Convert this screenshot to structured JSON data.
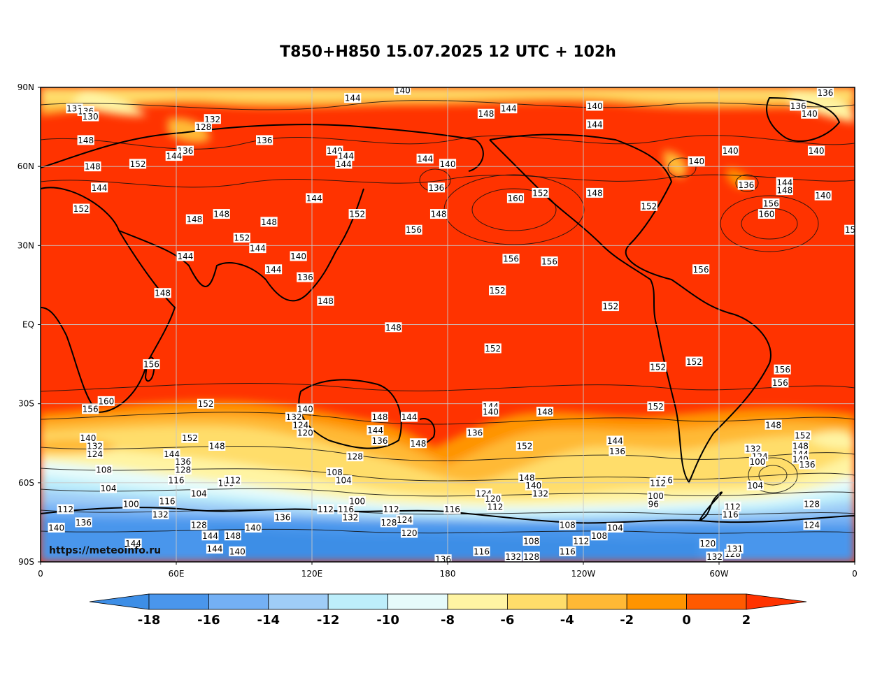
{
  "title": "T850+H850 15.07.2025 12 UTC + 102h",
  "watermark": "https://meteoinfo.ru",
  "lat_ticks": [
    "90N",
    "60N",
    "30N",
    "EQ",
    "30S",
    "60S",
    "90S"
  ],
  "lon_ticks": [
    "0",
    "60E",
    "120E",
    "180",
    "120W",
    "60W",
    "0"
  ],
  "colorbar": {
    "labels": [
      "-18",
      "-16",
      "-14",
      "-12",
      "-10",
      "-8",
      "-6",
      "-4",
      "-2",
      "0",
      "2"
    ],
    "colors": [
      "#3d8ee6",
      "#4a96ec",
      "#74b0f4",
      "#9fcdf7",
      "#bdeefb",
      "#e6fbfb",
      "#fff4a3",
      "#ffdd6a",
      "#ffb935",
      "#ff9400",
      "#ff5a00",
      "#ff3300"
    ]
  },
  "field_colors": {
    "warm": "#ff3300",
    "warm2": "#ff5a00",
    "orange": "#ff9400",
    "amber": "#ffb935",
    "yellow": "#ffdd6a",
    "paleyellow": "#fff4a3",
    "ice": "#e6fbfb",
    "cyan": "#bdeefb",
    "lightblue": "#9fcdf7",
    "blue": "#74b0f4",
    "midblue": "#4a96ec",
    "deepblue": "#3d8ee6"
  },
  "contour_labels": [
    {
      "v": "140",
      "lon": 160,
      "lat": 89
    },
    {
      "v": "144",
      "lon": 138,
      "lat": 86
    },
    {
      "v": "136",
      "lon": 347,
      "lat": 88
    },
    {
      "v": "132",
      "lon": 15,
      "lat": 82
    },
    {
      "v": "136",
      "lon": 20,
      "lat": 81
    },
    {
      "v": "130",
      "lon": 22,
      "lat": 79
    },
    {
      "v": "132",
      "lon": 76,
      "lat": 78
    },
    {
      "v": "128",
      "lon": 72,
      "lat": 75
    },
    {
      "v": "148",
      "lon": 197,
      "lat": 80
    },
    {
      "v": "144",
      "lon": 207,
      "lat": 82
    },
    {
      "v": "140",
      "lon": 245,
      "lat": 83
    },
    {
      "v": "144",
      "lon": 245,
      "lat": 76
    },
    {
      "v": "136",
      "lon": 335,
      "lat": 83
    },
    {
      "v": "140",
      "lon": 340,
      "lat": 80
    },
    {
      "v": "148",
      "lon": 20,
      "lat": 70
    },
    {
      "v": "136",
      "lon": 64,
      "lat": 66
    },
    {
      "v": "136",
      "lon": 99,
      "lat": 70
    },
    {
      "v": "140",
      "lon": 130,
      "lat": 66
    },
    {
      "v": "144",
      "lon": 135,
      "lat": 64
    },
    {
      "v": "144",
      "lon": 134,
      "lat": 61
    },
    {
      "v": "144",
      "lon": 59,
      "lat": 64
    },
    {
      "v": "144",
      "lon": 170,
      "lat": 63
    },
    {
      "v": "140",
      "lon": 180,
      "lat": 61
    },
    {
      "v": "140",
      "lon": 290,
      "lat": 62
    },
    {
      "v": "140",
      "lon": 305,
      "lat": 66
    },
    {
      "v": "140",
      "lon": 343,
      "lat": 66
    },
    {
      "v": "148",
      "lon": 23,
      "lat": 60
    },
    {
      "v": "152",
      "lon": 43,
      "lat": 61
    },
    {
      "v": "144",
      "lon": 26,
      "lat": 52
    },
    {
      "v": "136",
      "lon": 175,
      "lat": 52
    },
    {
      "v": "136",
      "lon": 312,
      "lat": 53
    },
    {
      "v": "144",
      "lon": 329,
      "lat": 54
    },
    {
      "v": "148",
      "lon": 329,
      "lat": 51
    },
    {
      "v": "140",
      "lon": 346,
      "lat": 49
    },
    {
      "v": "152",
      "lon": 221,
      "lat": 50
    },
    {
      "v": "160",
      "lon": 210,
      "lat": 48
    },
    {
      "v": "148",
      "lon": 245,
      "lat": 50
    },
    {
      "v": "152",
      "lon": 269,
      "lat": 45
    },
    {
      "v": "156",
      "lon": 323,
      "lat": 46
    },
    {
      "v": "160",
      "lon": 321,
      "lat": 42
    },
    {
      "v": "15",
      "lon": 358,
      "lat": 36
    },
    {
      "v": "152",
      "lon": 18,
      "lat": 44
    },
    {
      "v": "148",
      "lon": 68,
      "lat": 40
    },
    {
      "v": "148",
      "lon": 80,
      "lat": 42
    },
    {
      "v": "148",
      "lon": 101,
      "lat": 39
    },
    {
      "v": "144",
      "lon": 121,
      "lat": 48
    },
    {
      "v": "152",
      "lon": 140,
      "lat": 42
    },
    {
      "v": "148",
      "lon": 176,
      "lat": 42
    },
    {
      "v": "156",
      "lon": 165,
      "lat": 36
    },
    {
      "v": "152",
      "lon": 89,
      "lat": 33
    },
    {
      "v": "144",
      "lon": 96,
      "lat": 29
    },
    {
      "v": "140",
      "lon": 114,
      "lat": 26
    },
    {
      "v": "144",
      "lon": 64,
      "lat": 26
    },
    {
      "v": "144",
      "lon": 103,
      "lat": 21
    },
    {
      "v": "136",
      "lon": 117,
      "lat": 18
    },
    {
      "v": "156",
      "lon": 208,
      "lat": 25
    },
    {
      "v": "156",
      "lon": 225,
      "lat": 24
    },
    {
      "v": "156",
      "lon": 292,
      "lat": 21
    },
    {
      "v": "152",
      "lon": 202,
      "lat": 13
    },
    {
      "v": "152",
      "lon": 252,
      "lat": 7
    },
    {
      "v": "148",
      "lon": 54,
      "lat": 12
    },
    {
      "v": "148",
      "lon": 126,
      "lat": 9
    },
    {
      "v": "148",
      "lon": 156,
      "lat": -1
    },
    {
      "v": "152",
      "lon": 200,
      "lat": -9
    },
    {
      "v": "156",
      "lon": 49,
      "lat": -15
    },
    {
      "v": "152",
      "lon": 273,
      "lat": -16
    },
    {
      "v": "152",
      "lon": 289,
      "lat": -14
    },
    {
      "v": "156",
      "lon": 328,
      "lat": -17
    },
    {
      "v": "156",
      "lon": 327,
      "lat": -22
    },
    {
      "v": "160",
      "lon": 29,
      "lat": -29
    },
    {
      "v": "156",
      "lon": 22,
      "lat": -32
    },
    {
      "v": "152",
      "lon": 73,
      "lat": -30
    },
    {
      "v": "152",
      "lon": 272,
      "lat": -31
    },
    {
      "v": "140",
      "lon": 117,
      "lat": -32
    },
    {
      "v": "132",
      "lon": 112,
      "lat": -35
    },
    {
      "v": "124",
      "lon": 115,
      "lat": -38
    },
    {
      "v": "120",
      "lon": 117,
      "lat": -41
    },
    {
      "v": "144",
      "lon": 199,
      "lat": -31
    },
    {
      "v": "140",
      "lon": 199,
      "lat": -33
    },
    {
      "v": "148",
      "lon": 223,
      "lat": -33
    },
    {
      "v": "148",
      "lon": 150,
      "lat": -35
    },
    {
      "v": "144",
      "lon": 163,
      "lat": -35
    },
    {
      "v": "144",
      "lon": 148,
      "lat": -40
    },
    {
      "v": "136",
      "lon": 150,
      "lat": -44
    },
    {
      "v": "148",
      "lon": 167,
      "lat": -45
    },
    {
      "v": "136",
      "lon": 192,
      "lat": -41
    },
    {
      "v": "148",
      "lon": 324,
      "lat": -38
    },
    {
      "v": "152",
      "lon": 337,
      "lat": -42
    },
    {
      "v": "148",
      "lon": 336,
      "lat": -46
    },
    {
      "v": "144",
      "lon": 336,
      "lat": -49
    },
    {
      "v": "140",
      "lon": 336,
      "lat": -51
    },
    {
      "v": "136",
      "lon": 339,
      "lat": -53
    },
    {
      "v": "132",
      "lon": 315,
      "lat": -47
    },
    {
      "v": "124",
      "lon": 318,
      "lat": -50
    },
    {
      "v": "100",
      "lon": 317,
      "lat": -52
    },
    {
      "v": "104",
      "lon": 316,
      "lat": -61
    },
    {
      "v": "140",
      "lon": 21,
      "lat": -43
    },
    {
      "v": "132",
      "lon": 24,
      "lat": -46
    },
    {
      "v": "124",
      "lon": 24,
      "lat": -49
    },
    {
      "v": "108",
      "lon": 28,
      "lat": -55
    },
    {
      "v": "152",
      "lon": 66,
      "lat": -43
    },
    {
      "v": "148",
      "lon": 78,
      "lat": -46
    },
    {
      "v": "144",
      "lon": 58,
      "lat": -49
    },
    {
      "v": "136",
      "lon": 63,
      "lat": -52
    },
    {
      "v": "128",
      "lon": 63,
      "lat": -55
    },
    {
      "v": "116",
      "lon": 60,
      "lat": -59
    },
    {
      "v": "100",
      "lon": 82,
      "lat": -60
    },
    {
      "v": "112",
      "lon": 85,
      "lat": -59
    },
    {
      "v": "104",
      "lon": 30,
      "lat": -62
    },
    {
      "v": "100",
      "lon": 40,
      "lat": -68
    },
    {
      "v": "104",
      "lon": 70,
      "lat": -64
    },
    {
      "v": "116",
      "lon": 56,
      "lat": -67
    },
    {
      "v": "112",
      "lon": 11,
      "lat": -70
    },
    {
      "v": "132",
      "lon": 53,
      "lat": -72
    },
    {
      "v": "128",
      "lon": 70,
      "lat": -76
    },
    {
      "v": "140",
      "lon": 7,
      "lat": -77
    },
    {
      "v": "136",
      "lon": 19,
      "lat": -75
    },
    {
      "v": "144",
      "lon": 41,
      "lat": -83
    },
    {
      "v": "144",
      "lon": 75,
      "lat": -80
    },
    {
      "v": "144",
      "lon": 77,
      "lat": -85
    },
    {
      "v": "148",
      "lon": 85,
      "lat": -80
    },
    {
      "v": "140",
      "lon": 94,
      "lat": -77
    },
    {
      "v": "140",
      "lon": 87,
      "lat": -86
    },
    {
      "v": "136",
      "lon": 107,
      "lat": -73
    },
    {
      "v": "128",
      "lon": 139,
      "lat": -50
    },
    {
      "v": "108",
      "lon": 130,
      "lat": -56
    },
    {
      "v": "104",
      "lon": 134,
      "lat": -59
    },
    {
      "v": "100",
      "lon": 140,
      "lat": -67
    },
    {
      "v": "112",
      "lon": 126,
      "lat": -70
    },
    {
      "v": "116",
      "lon": 135,
      "lat": -70
    },
    {
      "v": "132",
      "lon": 137,
      "lat": -73
    },
    {
      "v": "112",
      "lon": 155,
      "lat": -70
    },
    {
      "v": "128",
      "lon": 154,
      "lat": -75
    },
    {
      "v": "124",
      "lon": 161,
      "lat": -74
    },
    {
      "v": "120",
      "lon": 163,
      "lat": -79
    },
    {
      "v": "116",
      "lon": 182,
      "lat": -70
    },
    {
      "v": "152",
      "lon": 214,
      "lat": -46
    },
    {
      "v": "148",
      "lon": 215,
      "lat": -58
    },
    {
      "v": "140",
      "lon": 218,
      "lat": -61
    },
    {
      "v": "132",
      "lon": 221,
      "lat": -64
    },
    {
      "v": "124",
      "lon": 196,
      "lat": -64
    },
    {
      "v": "120",
      "lon": 200,
      "lat": -66
    },
    {
      "v": "112",
      "lon": 201,
      "lat": -69
    },
    {
      "v": "144",
      "lon": 254,
      "lat": -44
    },
    {
      "v": "136",
      "lon": 255,
      "lat": -48
    },
    {
      "v": "116",
      "lon": 276,
      "lat": -59
    },
    {
      "v": "112",
      "lon": 273,
      "lat": -60
    },
    {
      "v": "100",
      "lon": 272,
      "lat": -65
    },
    {
      "v": "96",
      "lon": 271,
      "lat": -68
    },
    {
      "v": "112",
      "lon": 306,
      "lat": -69
    },
    {
      "v": "116",
      "lon": 305,
      "lat": -72
    },
    {
      "v": "128",
      "lon": 341,
      "lat": -68
    },
    {
      "v": "124",
      "lon": 341,
      "lat": -76
    },
    {
      "v": "108",
      "lon": 233,
      "lat": -76
    },
    {
      "v": "104",
      "lon": 254,
      "lat": -77
    },
    {
      "v": "108",
      "lon": 247,
      "lat": -80
    },
    {
      "v": "112",
      "lon": 239,
      "lat": -82
    },
    {
      "v": "116",
      "lon": 233,
      "lat": -86
    },
    {
      "v": "108",
      "lon": 217,
      "lat": -82
    },
    {
      "v": "132",
      "lon": 209,
      "lat": -88
    },
    {
      "v": "128",
      "lon": 217,
      "lat": -88
    },
    {
      "v": "116",
      "lon": 195,
      "lat": -86
    },
    {
      "v": "136",
      "lon": 178,
      "lat": -89
    },
    {
      "v": "120",
      "lon": 295,
      "lat": -83
    },
    {
      "v": "132",
      "lon": 298,
      "lat": -88
    },
    {
      "v": "128",
      "lon": 306,
      "lat": -87
    },
    {
      "v": "131",
      "lon": 307,
      "lat": -85
    }
  ]
}
